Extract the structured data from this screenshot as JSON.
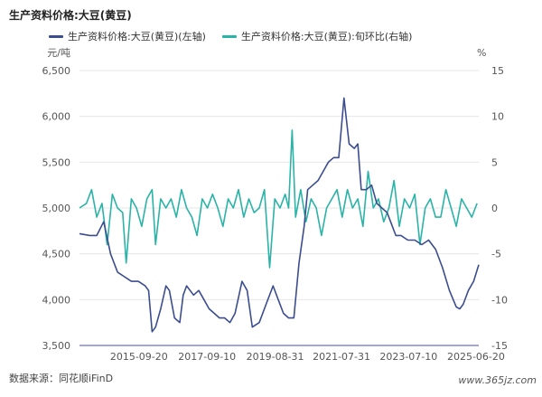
{
  "title": "生产资料价格:大豆(黄豆)",
  "legend": {
    "left_series": "生产资料价格:大豆(黄豆)(左轴)",
    "right_series": "生产资料价格:大豆(黄豆):旬环比(右轴)"
  },
  "source": "数据来源：同花顺iFinD",
  "watermark": "www.365jz.com",
  "colors": {
    "left_series": "#3b4d8f",
    "right_series": "#2ab3a7"
  },
  "chart_data": {
    "type": "line",
    "left_axis": {
      "unit": "元/吨",
      "ylim": [
        3500,
        6500
      ],
      "ticks": [
        "6,500",
        "6,000",
        "5,500",
        "5,000",
        "4,500",
        "4,000",
        "3,500"
      ]
    },
    "right_axis": {
      "unit": "%",
      "ylim": [
        -15,
        15
      ],
      "ticks": [
        "15",
        "10",
        "5",
        "0",
        "-5",
        "-10",
        "-15"
      ]
    },
    "x_ticks": [
      "2015-09-20",
      "2017-09-10",
      "2019-08-31",
      "2021-07-31",
      "2023-07-10",
      "2025-06-20"
    ],
    "series": [
      {
        "name": "生产资料价格:大豆(黄豆)(左轴)",
        "axis": "left",
        "x": [
          2014.0,
          2014.3,
          2014.5,
          2014.7,
          2014.9,
          2015.1,
          2015.3,
          2015.5,
          2015.7,
          2015.9,
          2016.0,
          2016.1,
          2016.2,
          2016.35,
          2016.5,
          2016.6,
          2016.75,
          2016.9,
          2017.0,
          2017.1,
          2017.3,
          2017.45,
          2017.6,
          2017.75,
          2017.9,
          2018.05,
          2018.2,
          2018.35,
          2018.5,
          2018.7,
          2018.85,
          2019.0,
          2019.2,
          2019.4,
          2019.6,
          2019.75,
          2019.9,
          2020.05,
          2020.2,
          2020.35,
          2020.5,
          2020.6,
          2020.75,
          2020.9,
          2021.05,
          2021.2,
          2021.35,
          2021.5,
          2021.65,
          2021.8,
          2021.95,
          2022.05,
          2022.15,
          2022.3,
          2022.45,
          2022.6,
          2022.75,
          2022.9,
          2023.0,
          2023.15,
          2023.3,
          2023.5,
          2023.7,
          2023.9,
          2024.1,
          2024.3,
          2024.5,
          2024.7,
          2024.9,
          2025.0,
          2025.1,
          2025.25,
          2025.4,
          2025.55
        ],
        "values": [
          4720,
          4700,
          4700,
          4850,
          4500,
          4300,
          4250,
          4200,
          4200,
          4150,
          4100,
          3650,
          3700,
          3900,
          4150,
          4100,
          3800,
          3750,
          4050,
          4150,
          4050,
          4100,
          4000,
          3900,
          3850,
          3800,
          3800,
          3750,
          3850,
          4200,
          4100,
          3700,
          3750,
          3950,
          4150,
          4000,
          3850,
          3800,
          3800,
          4400,
          4800,
          5200,
          5250,
          5300,
          5400,
          5500,
          5550,
          5550,
          6200,
          5700,
          5650,
          5700,
          5200,
          5200,
          5250,
          5050,
          5000,
          4950,
          4850,
          4700,
          4700,
          4650,
          4650,
          4600,
          4650,
          4550,
          4350,
          4100,
          3920,
          3900,
          3950,
          4100,
          4200,
          4380
        ]
      },
      {
        "name": "生产资料价格:大豆(黄豆):旬环比(右轴)",
        "axis": "right",
        "x": [
          2014.0,
          2014.2,
          2014.35,
          2014.5,
          2014.65,
          2014.8,
          2014.95,
          2015.1,
          2015.25,
          2015.35,
          2015.5,
          2015.65,
          2015.8,
          2015.95,
          2016.1,
          2016.2,
          2016.35,
          2016.5,
          2016.65,
          2016.8,
          2016.95,
          2017.1,
          2017.25,
          2017.4,
          2017.55,
          2017.7,
          2017.85,
          2018.0,
          2018.15,
          2018.3,
          2018.45,
          2018.6,
          2018.75,
          2018.9,
          2019.05,
          2019.2,
          2019.35,
          2019.5,
          2019.65,
          2019.8,
          2019.95,
          2020.05,
          2020.15,
          2020.25,
          2020.4,
          2020.55,
          2020.7,
          2020.85,
          2021.0,
          2021.15,
          2021.3,
          2021.45,
          2021.6,
          2021.75,
          2021.9,
          2022.05,
          2022.2,
          2022.35,
          2022.5,
          2022.65,
          2022.8,
          2022.95,
          2023.1,
          2023.25,
          2023.4,
          2023.55,
          2023.7,
          2023.85,
          2024.0,
          2024.15,
          2024.3,
          2024.45,
          2024.6,
          2024.75,
          2024.9,
          2025.05,
          2025.2,
          2025.35,
          2025.5
        ],
        "values": [
          0,
          0.5,
          2,
          -1,
          0.5,
          -4,
          1.5,
          0,
          -0.5,
          -6,
          1,
          0,
          -2,
          1,
          2,
          -4,
          1,
          0,
          1,
          -1,
          2,
          0,
          -1,
          -3,
          1,
          0,
          1.5,
          0,
          -2,
          1,
          0,
          2,
          -1,
          1,
          -0.5,
          0,
          2,
          -6.5,
          1,
          0,
          1.5,
          0,
          8.5,
          -1,
          2,
          -1.5,
          1,
          0,
          -3,
          0,
          1,
          2,
          -1,
          2,
          0,
          1,
          -2,
          4,
          0,
          1,
          -1.5,
          0,
          3,
          -2,
          1,
          0,
          1.5,
          -4,
          0,
          1,
          -1,
          -1,
          2,
          0,
          -2,
          1,
          0,
          -1,
          0.5
        ]
      }
    ]
  }
}
